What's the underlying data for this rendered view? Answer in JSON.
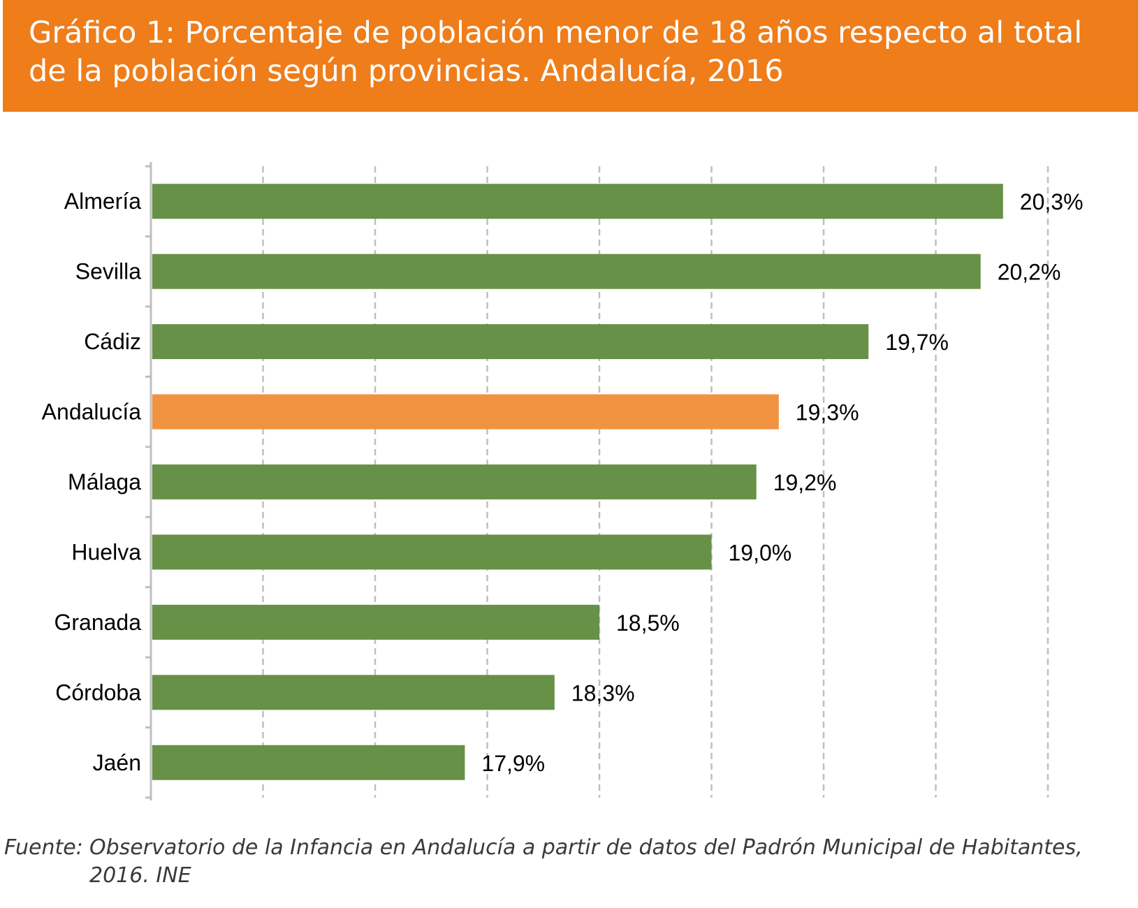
{
  "header": {
    "title": "Gráfico 1: Porcentaje de población menor de 18 años respecto al total de la población según provincias. Andalucía, 2016"
  },
  "colors": {
    "header_bg": "#ef7d1a",
    "bar_default": "#679146",
    "bar_highlight": "#f09340",
    "grid": "#bfbfbf",
    "axis": "#bfbfbf"
  },
  "chart_data": {
    "type": "bar",
    "orientation": "horizontal",
    "title": "",
    "xlabel": "",
    "ylabel": "",
    "categories": [
      "Almería",
      "Sevilla",
      "Cádiz",
      "Andalucía",
      "Málaga",
      "Huelva",
      "Granada",
      "Córdoba",
      "Jaén"
    ],
    "values": [
      20.3,
      20.2,
      19.7,
      19.3,
      19.2,
      19.0,
      18.5,
      18.3,
      17.9
    ],
    "value_labels": [
      "20,3%",
      "20,2%",
      "19,7%",
      "19,3%",
      "19,2%",
      "19,0%",
      "18,5%",
      "18,3%",
      "17,9%"
    ],
    "highlight": [
      "Andalucía"
    ],
    "xlim": [
      16.5,
      20.5
    ],
    "x_grid_step": 0.5,
    "grid": true,
    "grid_style": "dashed",
    "x_tick_labels_visible": false,
    "legend": "none"
  },
  "footer": {
    "source_label": "Fuente:",
    "source_text": "Observatorio de la Infancia en Andalucía a partir de datos del Padrón Municipal de Habitantes, 2016. INE"
  }
}
